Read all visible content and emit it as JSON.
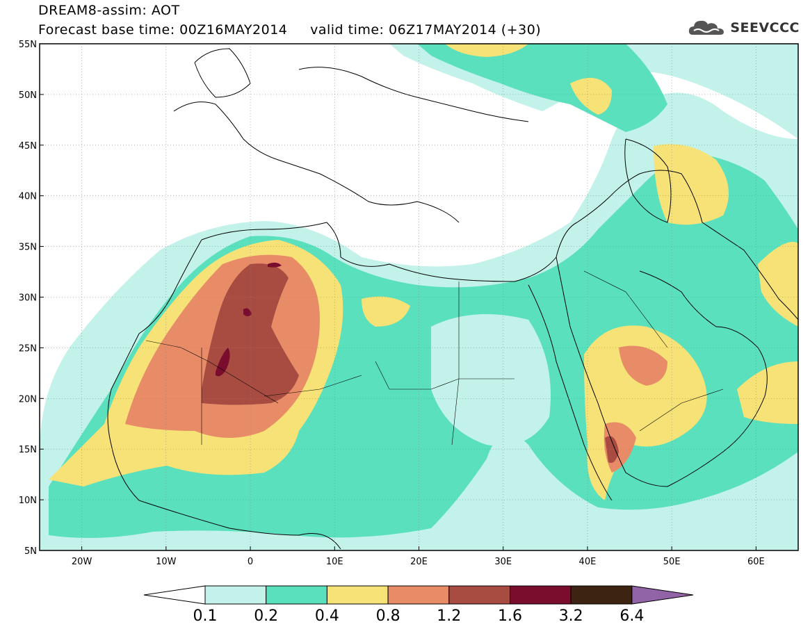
{
  "title": {
    "line1": "DREAM8-assim: AOT",
    "line2": "Forecast base time: 00Z16MAY2014     valid time: 06Z17MAY2014 (+30)"
  },
  "logo": {
    "text": "SEEVCCC",
    "icon": "cloud-logo-icon"
  },
  "map": {
    "lat_range": [
      5,
      55
    ],
    "lon_range": [
      -25,
      65
    ],
    "lat_ticks": [
      "5N",
      "10N",
      "15N",
      "20N",
      "25N",
      "30N",
      "35N",
      "40N",
      "45N",
      "50N",
      "55N"
    ],
    "lon_ticks": [
      "20W",
      "10W",
      "0",
      "10E",
      "20E",
      "30E",
      "40E",
      "50E",
      "60E"
    ],
    "grid": "dotted"
  },
  "legend": {
    "labels": [
      "0.1",
      "0.2",
      "0.4",
      "0.8",
      "1.2",
      "1.6",
      "3.2",
      "6.4"
    ],
    "colors": [
      "#c3f2ea",
      "#5ae0bc",
      "#f6e277",
      "#e88c68",
      "#a84c42",
      "#7a0c2e",
      "#3d2412",
      "#9064a6"
    ],
    "lower_arrow_color": "#ffffff"
  }
}
